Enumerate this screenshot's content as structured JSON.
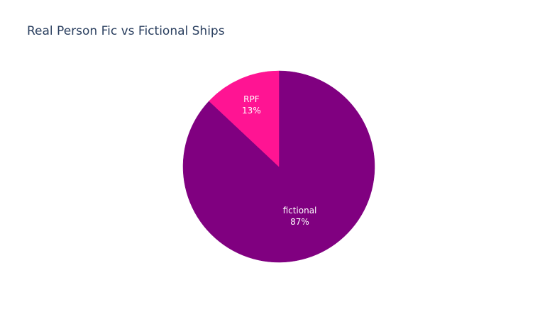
{
  "chart_data": {
    "type": "pie",
    "title": "Real Person Fic vs Fictional Ships",
    "slices": [
      {
        "label": "fictional",
        "value": 87,
        "text": "87%",
        "color": "#800080"
      },
      {
        "label": "RPF",
        "value": 13,
        "text": "13%",
        "color": "#ff1493"
      }
    ],
    "direction": "clockwise",
    "start": "12 o'clock",
    "legend": "none"
  }
}
